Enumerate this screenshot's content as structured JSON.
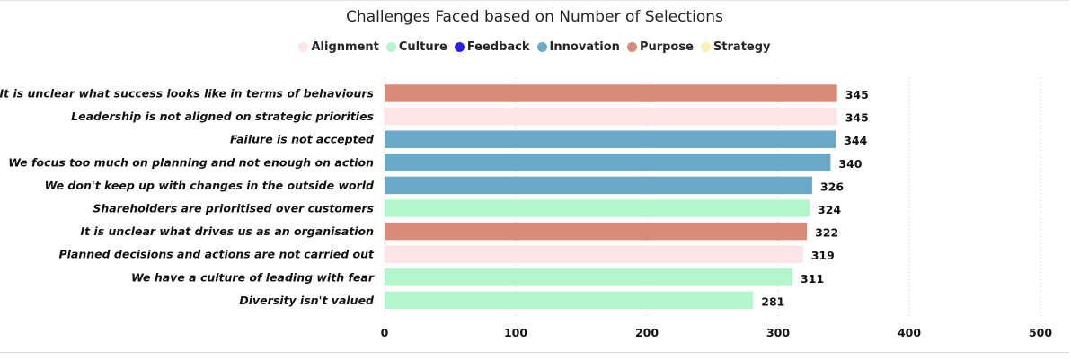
{
  "chart_data": {
    "type": "bar",
    "orientation": "horizontal",
    "title": "Challenges Faced based on Number of Selections",
    "legend_position": "top-center",
    "legend": [
      {
        "name": "Alignment",
        "color": "#fde4e6"
      },
      {
        "name": "Culture",
        "color": "#b3f5cd"
      },
      {
        "name": "Feedback",
        "color": "#2b1de6"
      },
      {
        "name": "Innovation",
        "color": "#6aaac8"
      },
      {
        "name": "Purpose",
        "color": "#d98b7a"
      },
      {
        "name": "Strategy",
        "color": "#fbf0b5"
      }
    ],
    "categories": [
      "It is unclear what success looks like in terms of behaviours",
      "Leadership is not aligned on strategic priorities",
      "Failure is not accepted",
      "We focus too much on planning and not enough on action",
      "We don't keep up with changes in the outside world",
      "Shareholders are prioritised over customers",
      "It is unclear what drives us as an organisation",
      "Planned decisions and actions are not carried out",
      "We have a culture of leading with fear",
      "Diversity isn't valued"
    ],
    "values": [
      345,
      345,
      344,
      340,
      326,
      324,
      322,
      319,
      311,
      281
    ],
    "value_labels": [
      "345",
      "345",
      "344",
      "340",
      "326",
      "324",
      "322",
      "319",
      "311",
      "281"
    ],
    "groups": [
      "Purpose",
      "Alignment",
      "Innovation",
      "Innovation",
      "Innovation",
      "Culture",
      "Purpose",
      "Alignment",
      "Culture",
      "Culture"
    ],
    "xlim": [
      0,
      500
    ],
    "xticks": [
      0,
      100,
      200,
      300,
      400,
      500
    ],
    "xtick_labels": [
      "0",
      "100",
      "200",
      "300",
      "400",
      "500"
    ],
    "grid": true
  }
}
